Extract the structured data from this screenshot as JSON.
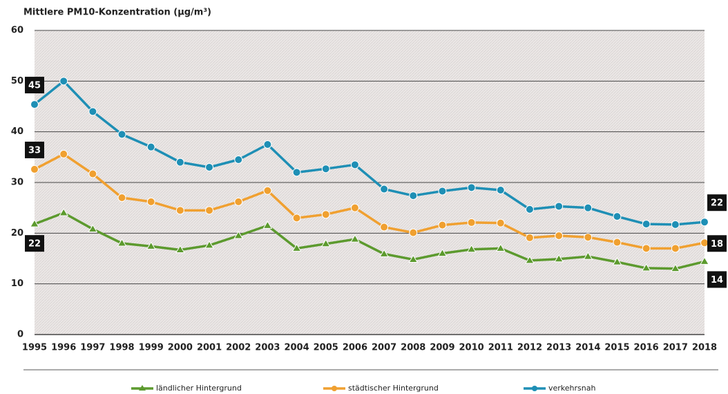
{
  "chart_data": {
    "type": "line",
    "title": "Mittlere PM10-Konzentration (µg/m³)",
    "categories": [
      "1995",
      "1996",
      "1997",
      "1998",
      "1999",
      "2000",
      "2001",
      "2002",
      "2003",
      "2004",
      "2005",
      "2006",
      "2007",
      "2008",
      "2009",
      "2010",
      "2011",
      "2012",
      "2013",
      "2014",
      "2015",
      "2016",
      "2017",
      "2018"
    ],
    "ylim": [
      0,
      60
    ],
    "yticks": [
      0,
      10,
      20,
      30,
      40,
      50,
      60
    ],
    "grid": true,
    "legend": "bottom",
    "series": [
      {
        "name": "ländlicher Hintergrund",
        "color": "#5c9a2e",
        "marker": "triangle",
        "values": [
          21.8,
          24,
          20.8,
          18,
          17.4,
          16.7,
          17.6,
          19.5,
          21.5,
          17,
          17.9,
          18.8,
          15.9,
          14.8,
          16,
          16.8,
          17,
          14.6,
          14.9,
          15.4,
          14.3,
          13.1,
          13,
          14.4
        ],
        "value_labels": [
          "22",
          null,
          null,
          null,
          null,
          null,
          null,
          null,
          null,
          null,
          null,
          null,
          null,
          null,
          null,
          null,
          null,
          null,
          null,
          null,
          null,
          null,
          null,
          "14"
        ]
      },
      {
        "name": "städtischer Hintergrund",
        "color": "#f0a030",
        "marker": "circle",
        "values": [
          32.6,
          35.6,
          31.7,
          27,
          26.2,
          24.5,
          24.5,
          26.2,
          28.4,
          23,
          23.7,
          25,
          21.2,
          20.1,
          21.6,
          22.1,
          22,
          19.1,
          19.5,
          19.2,
          18.2,
          17,
          17,
          18.1
        ],
        "value_labels": [
          "33",
          null,
          null,
          null,
          null,
          null,
          null,
          null,
          null,
          null,
          null,
          null,
          null,
          null,
          null,
          null,
          null,
          null,
          null,
          null,
          null,
          null,
          null,
          "18"
        ]
      },
      {
        "name": "verkehrsnah",
        "color": "#1e8fb5",
        "marker": "circle",
        "values": [
          45.4,
          50,
          44,
          39.5,
          37,
          34,
          33,
          34.5,
          37.5,
          32,
          32.7,
          33.5,
          28.7,
          27.4,
          28.3,
          29,
          28.5,
          24.7,
          25.3,
          25,
          23.3,
          21.8,
          21.7,
          22.2
        ],
        "value_labels": [
          "45",
          null,
          null,
          null,
          null,
          null,
          null,
          null,
          null,
          null,
          null,
          null,
          null,
          null,
          null,
          null,
          null,
          null,
          null,
          null,
          null,
          null,
          null,
          "22"
        ]
      }
    ]
  }
}
